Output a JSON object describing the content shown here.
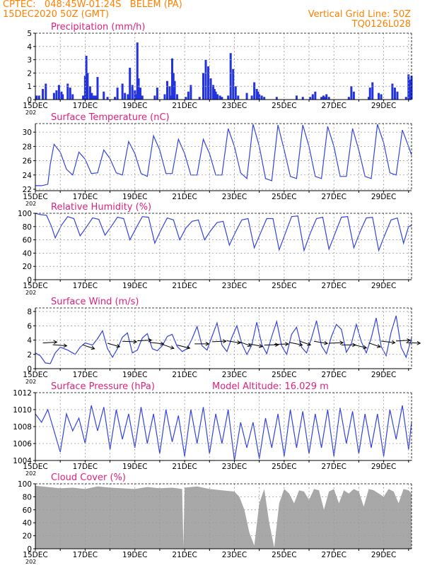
{
  "header": {
    "left_line1": "CPTEC:   048:45W-01:24S   BELEM (PA)",
    "left_line2": "15DEC2020 50Z (GMT)",
    "right_line1": "Vertical Grid Line: 50Z",
    "right_line2": "TQ0126L028"
  },
  "colors": {
    "header": "#ff8000",
    "title": "#e0207f",
    "series": "#3344dd",
    "bars": "#2233dd",
    "cloud": "#a8a8a8",
    "frame": "#000000",
    "grid": "#9a9a9a"
  },
  "x_labels": [
    "15DEC",
    "17DEC",
    "19DEC",
    "21DEC",
    "23DEC",
    "25DEC",
    "27DEC",
    "29DEC"
  ],
  "year_fragment": "202",
  "chart_data": [
    {
      "id": "precip",
      "type": "bar",
      "title": "Precipitation (mm/h)",
      "ylim": [
        0,
        5
      ],
      "yticks": [
        0,
        1,
        2,
        3,
        4,
        5
      ],
      "x_days": [
        0.05,
        0.15,
        0.3,
        0.42,
        0.75,
        0.85,
        0.95,
        1.05,
        1.1,
        1.3,
        1.4,
        1.5,
        1.92,
        2.0,
        2.05,
        2.1,
        2.2,
        2.27,
        2.35,
        2.42,
        2.5,
        2.75,
        2.9,
        3.2,
        3.3,
        3.5,
        3.6,
        3.72,
        3.8,
        3.9,
        4.0,
        4.05,
        4.1,
        4.15,
        4.22,
        4.3,
        4.8,
        4.9,
        5.2,
        5.3,
        5.4,
        5.45,
        5.5,
        5.55,
        5.6,
        5.7,
        6.05,
        6.15,
        6.25,
        6.6,
        6.75,
        6.85,
        6.95,
        7.05,
        7.15,
        7.2,
        7.25,
        7.32,
        7.42,
        7.5,
        7.75,
        7.85,
        7.95,
        8.05,
        8.15,
        8.5,
        8.7,
        8.8,
        8.9,
        8.95,
        9.0,
        9.1,
        9.2,
        9.7,
        10.5,
        10.75,
        11.05,
        11.15,
        11.25,
        11.5,
        11.58,
        11.65,
        11.7,
        11.8,
        12.6,
        12.7,
        12.8,
        13.4,
        13.45,
        13.55,
        13.8,
        13.9,
        14.35,
        14.45,
        14.55,
        14.9,
        15.0,
        15.05,
        15.12
      ],
      "values": [
        0.3,
        0.3,
        0.8,
        1.2,
        0.5,
        0.7,
        1.1,
        0.6,
        0.4,
        1.2,
        0.9,
        0.4,
        0.3,
        1.8,
        3.3,
        2.0,
        1.0,
        0.5,
        0.3,
        0.3,
        1.7,
        0.6,
        0.2,
        0.2,
        0.9,
        1.2,
        0.5,
        0.4,
        2.4,
        1.1,
        0.7,
        0.4,
        4.3,
        1.6,
        0.9,
        0.3,
        0.3,
        0.9,
        0.4,
        1.4,
        1.0,
        0.3,
        3.1,
        2.0,
        1.4,
        0.4,
        0.2,
        0.6,
        1.1,
        0.2,
        2.0,
        3.0,
        2.5,
        1.6,
        1.1,
        0.8,
        0.6,
        0.4,
        0.3,
        0.2,
        0.3,
        3.5,
        2.3,
        1.0,
        0.3,
        0.5,
        0.3,
        1.3,
        0.8,
        0.6,
        0.4,
        0.3,
        0.2,
        0.2,
        0.3,
        0.2,
        0.2,
        0.4,
        0.6,
        0.2,
        0.3,
        0.2,
        0.4,
        0.2,
        0.2,
        1.0,
        0.6,
        0.2,
        0.9,
        1.3,
        0.5,
        0.4,
        1.2,
        0.9,
        0.6,
        0.2,
        1.9,
        1.5,
        1.8
      ]
    },
    {
      "id": "temp",
      "type": "line",
      "title": "Surface Temperature (nC)",
      "ylim": [
        21.8,
        31.2
      ],
      "yticks": [
        22,
        24,
        26,
        28,
        30
      ],
      "x_days": [
        0,
        0.25,
        0.5,
        0.6,
        0.75,
        1.0,
        1.25,
        1.5,
        1.75,
        2.0,
        2.25,
        2.5,
        2.75,
        3.0,
        3.25,
        3.5,
        3.75,
        4.0,
        4.25,
        4.5,
        4.75,
        5.0,
        5.25,
        5.5,
        5.75,
        6.0,
        6.25,
        6.5,
        6.75,
        7.0,
        7.25,
        7.5,
        7.75,
        8.0,
        8.25,
        8.5,
        8.75,
        9.0,
        9.25,
        9.5,
        9.75,
        10.0,
        10.25,
        10.5,
        10.75,
        11.0,
        11.25,
        11.5,
        11.75,
        12.0,
        12.25,
        12.5,
        12.75,
        13.0,
        13.25,
        13.5,
        13.75,
        14.0,
        14.25,
        14.5,
        14.75,
        15.0,
        15.12
      ],
      "values": [
        22.5,
        22.5,
        22.7,
        25.5,
        28.3,
        27.2,
        24.8,
        24.0,
        27.2,
        26.2,
        24.2,
        24.3,
        27.5,
        26.3,
        24.3,
        24.0,
        28.7,
        27.0,
        24.2,
        23.8,
        29.5,
        27.5,
        24.2,
        24.2,
        29.0,
        27.0,
        24.0,
        24.0,
        29.0,
        27.0,
        24.0,
        24.0,
        30.5,
        28.0,
        24.3,
        23.5,
        31.1,
        28.0,
        23.5,
        23.2,
        31.0,
        27.5,
        23.8,
        23.5,
        31.0,
        28.0,
        23.8,
        23.5,
        30.8,
        28.0,
        23.8,
        23.8,
        30.5,
        27.5,
        23.8,
        23.5,
        31.1,
        28.5,
        24.3,
        24.0,
        30.3,
        28.0,
        26.8
      ]
    },
    {
      "id": "rh",
      "type": "line",
      "title": "Relative Humidity (%)",
      "ylim": [
        0,
        100
      ],
      "yticks": [
        0,
        20,
        40,
        60,
        80,
        100
      ],
      "x_days": [
        0,
        0.2,
        0.45,
        0.65,
        0.8,
        1.05,
        1.3,
        1.55,
        1.8,
        2.05,
        2.3,
        2.55,
        2.8,
        3.05,
        3.3,
        3.55,
        3.8,
        4.05,
        4.3,
        4.55,
        4.8,
        5.05,
        5.3,
        5.55,
        5.8,
        6.05,
        6.3,
        6.55,
        6.8,
        7.05,
        7.3,
        7.55,
        7.8,
        8.05,
        8.3,
        8.55,
        8.8,
        9.05,
        9.3,
        9.55,
        9.8,
        10.05,
        10.3,
        10.55,
        10.8,
        11.05,
        11.3,
        11.55,
        11.8,
        12.05,
        12.3,
        12.55,
        12.8,
        13.05,
        13.3,
        13.55,
        13.8,
        14.05,
        14.3,
        14.55,
        14.8,
        15.0,
        15.12
      ],
      "values": [
        100,
        98,
        97,
        80,
        63,
        82,
        95,
        92,
        66,
        79,
        93,
        91,
        67,
        80,
        94,
        92,
        60,
        78,
        95,
        94,
        55,
        75,
        93,
        90,
        60,
        78,
        88,
        90,
        60,
        74,
        86,
        88,
        52,
        72,
        90,
        92,
        48,
        70,
        92,
        92,
        45,
        70,
        95,
        96,
        44,
        70,
        92,
        94,
        46,
        70,
        94,
        95,
        48,
        72,
        93,
        94,
        44,
        68,
        90,
        93,
        55,
        80,
        82
      ]
    },
    {
      "id": "wind",
      "type": "line",
      "title": "Surface Wind (m/s)",
      "ylim": [
        0,
        8.5
      ],
      "yticks": [
        0,
        2,
        4,
        6,
        8
      ],
      "x_days": [
        0,
        0.2,
        0.4,
        0.6,
        0.8,
        1.0,
        1.3,
        1.6,
        1.8,
        2.0,
        2.3,
        2.5,
        2.7,
        2.9,
        3.1,
        3.3,
        3.5,
        3.7,
        3.9,
        4.1,
        4.3,
        4.5,
        4.7,
        4.9,
        5.1,
        5.3,
        5.5,
        5.7,
        5.9,
        6.1,
        6.3,
        6.5,
        6.7,
        6.9,
        7.1,
        7.3,
        7.5,
        7.7,
        7.9,
        8.1,
        8.3,
        8.5,
        8.7,
        8.9,
        9.1,
        9.3,
        9.5,
        9.7,
        9.9,
        10.1,
        10.3,
        10.5,
        10.7,
        10.9,
        11.1,
        11.3,
        11.5,
        11.7,
        11.9,
        12.1,
        12.3,
        12.5,
        12.7,
        12.9,
        13.1,
        13.3,
        13.5,
        13.7,
        13.9,
        14.1,
        14.3,
        14.5,
        14.7,
        14.9,
        15.12
      ],
      "values": [
        2.2,
        1.8,
        0.8,
        0.7,
        2.2,
        3.0,
        2.6,
        2.0,
        3.0,
        3.6,
        3.3,
        4.2,
        5.3,
        2.8,
        1.6,
        2.8,
        4.4,
        5.0,
        2.2,
        2.6,
        4.3,
        4.9,
        2.8,
        2.5,
        3.2,
        4.5,
        4.8,
        3.1,
        2.4,
        2.8,
        4.2,
        5.9,
        3.2,
        2.6,
        4.5,
        6.4,
        3.3,
        2.4,
        4.4,
        6.0,
        3.5,
        2.0,
        3.3,
        6.5,
        3.4,
        2.1,
        4.5,
        6.6,
        3.2,
        2.0,
        4.8,
        5.8,
        3.0,
        2.2,
        4.3,
        6.7,
        3.2,
        2.1,
        4.5,
        6.2,
        5.5,
        2.3,
        3.5,
        6.2,
        3.8,
        2.2,
        4.3,
        7.1,
        3.1,
        1.8,
        5.1,
        7.4,
        3.0,
        1.6,
        4.3
      ]
    },
    {
      "id": "pressure",
      "type": "line",
      "title": "Surface Pressure (hPa)",
      "annotation": "Model Altitude: 16.029  m",
      "ylim": [
        1004,
        1012
      ],
      "yticks": [
        1004,
        1006,
        1008,
        1010,
        1012
      ],
      "x_days": [
        0,
        0.25,
        0.5,
        0.75,
        1.0,
        1.25,
        1.5,
        1.75,
        2.0,
        2.25,
        2.5,
        2.75,
        3.0,
        3.25,
        3.5,
        3.75,
        4.0,
        4.25,
        4.5,
        4.75,
        5.0,
        5.25,
        5.5,
        5.75,
        6.0,
        6.25,
        6.5,
        6.75,
        7.0,
        7.25,
        7.5,
        7.75,
        8.0,
        8.25,
        8.5,
        8.75,
        9.0,
        9.25,
        9.5,
        9.75,
        10.0,
        10.25,
        10.5,
        10.75,
        11.0,
        11.25,
        11.5,
        11.75,
        12.0,
        12.25,
        12.5,
        12.75,
        13.0,
        13.25,
        13.5,
        13.75,
        14.0,
        14.25,
        14.5,
        14.75,
        15.0,
        15.12
      ],
      "values": [
        1009.5,
        1008.5,
        1010.0,
        1007.5,
        1005.0,
        1009.5,
        1007.5,
        1009.0,
        1006.0,
        1010.5,
        1007.5,
        1010.3,
        1005.3,
        1010.0,
        1006.5,
        1009.5,
        1005.5,
        1010.3,
        1006.0,
        1009.5,
        1004.8,
        1010.0,
        1006.2,
        1009.3,
        1004.5,
        1010.0,
        1006.0,
        1010.3,
        1004.8,
        1009.5,
        1006.0,
        1010.0,
        1004.0,
        1008.5,
        1005.5,
        1008.5,
        1004.2,
        1009.0,
        1005.5,
        1009.5,
        1004.5,
        1010.0,
        1005.5,
        1009.8,
        1004.8,
        1009.5,
        1005.5,
        1010.0,
        1004.5,
        1010.2,
        1006.0,
        1009.8,
        1004.8,
        1009.5,
        1005.5,
        1009.5,
        1004.5,
        1010.0,
        1006.5,
        1010.5,
        1005.3,
        1008.5
      ]
    },
    {
      "id": "cloud",
      "type": "area",
      "title": "Cloud Cover (%)",
      "ylim": [
        0,
        100
      ],
      "yticks": [
        0,
        20,
        40,
        60,
        80,
        100
      ],
      "x_days": [
        0,
        0.5,
        1.0,
        1.5,
        2.0,
        2.5,
        3.0,
        3.5,
        4.0,
        4.5,
        5.0,
        5.5,
        5.9,
        5.95,
        6.0,
        6.5,
        7.0,
        7.5,
        8.0,
        8.2,
        8.4,
        8.6,
        8.8,
        9.0,
        9.2,
        9.4,
        9.6,
        9.8,
        10.0,
        10.2,
        10.4,
        10.6,
        10.8,
        11.0,
        11.2,
        11.4,
        11.6,
        11.8,
        12.0,
        12.2,
        12.4,
        12.6,
        12.8,
        13.0,
        13.2,
        13.4,
        13.6,
        13.8,
        14.0,
        14.2,
        14.4,
        14.6,
        14.8,
        15.0,
        15.12
      ],
      "values": [
        97,
        95,
        93,
        94,
        92,
        96,
        94,
        93,
        92,
        95,
        93,
        94,
        92,
        3,
        94,
        96,
        92,
        90,
        88,
        80,
        60,
        25,
        5,
        70,
        92,
        40,
        2,
        70,
        92,
        85,
        70,
        90,
        88,
        75,
        92,
        90,
        60,
        88,
        92,
        70,
        90,
        85,
        92,
        88,
        65,
        92,
        90,
        85,
        80,
        92,
        88,
        70,
        92,
        90,
        85
      ]
    }
  ]
}
